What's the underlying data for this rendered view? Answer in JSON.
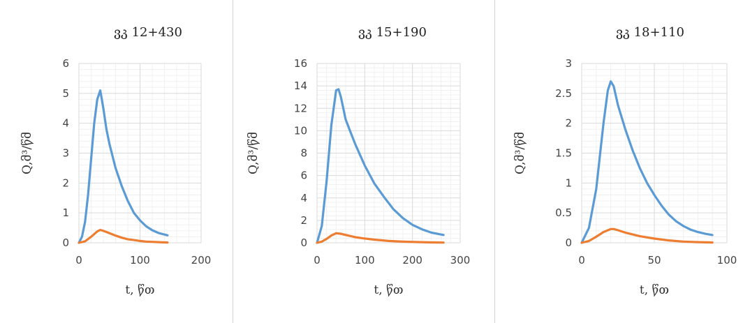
{
  "colors": {
    "series_q": "#5b9bd5",
    "series_orange": "#ed7d31",
    "major_grid": "#d9d9d9",
    "minor_grid": "#f0f0f0"
  },
  "chart_data": [
    {
      "type": "line",
      "title": "ვკ 12+430",
      "xlabel": "t, წთ",
      "ylabel": "Q,მ³/წმ",
      "xlim": [
        0,
        200
      ],
      "ylim": [
        0,
        6
      ],
      "xticks": [
        0,
        100,
        200
      ],
      "yticks": [
        0,
        1,
        2,
        3,
        4,
        5,
        6
      ],
      "grid": true,
      "series": [
        {
          "x": [
            0,
            5,
            10,
            15,
            20,
            25,
            30,
            35,
            40,
            45,
            50,
            60,
            70,
            80,
            90,
            100,
            110,
            120,
            130,
            145
          ],
          "y": [
            0,
            0.2,
            0.7,
            1.6,
            2.8,
            4.0,
            4.8,
            5.1,
            4.5,
            3.8,
            3.3,
            2.5,
            1.9,
            1.4,
            1.0,
            0.75,
            0.55,
            0.42,
            0.33,
            0.25
          ]
        },
        {
          "x": [
            0,
            10,
            20,
            30,
            35,
            40,
            50,
            60,
            70,
            80,
            90,
            100,
            110,
            120,
            130,
            145
          ],
          "y": [
            0,
            0.05,
            0.2,
            0.38,
            0.43,
            0.4,
            0.32,
            0.24,
            0.17,
            0.12,
            0.09,
            0.06,
            0.04,
            0.03,
            0.02,
            0.01
          ]
        }
      ]
    },
    {
      "type": "line",
      "title": "ვკ 15+190",
      "xlabel": "t, წთ",
      "ylabel": "Q,მ³/წმ",
      "xlim": [
        0,
        300
      ],
      "ylim": [
        0,
        16
      ],
      "xticks": [
        0,
        100,
        200,
        300
      ],
      "yticks": [
        0,
        2,
        4,
        6,
        8,
        10,
        12,
        14,
        16
      ],
      "grid": true,
      "series": [
        {
          "x": [
            0,
            10,
            20,
            30,
            40,
            45,
            50,
            60,
            70,
            80,
            100,
            120,
            140,
            160,
            180,
            200,
            220,
            240,
            265
          ],
          "y": [
            0,
            1.5,
            5.5,
            10.5,
            13.6,
            13.7,
            13.0,
            11.0,
            9.9,
            8.8,
            6.9,
            5.3,
            4.1,
            3.0,
            2.2,
            1.6,
            1.2,
            0.9,
            0.7
          ]
        },
        {
          "x": [
            0,
            10,
            20,
            30,
            40,
            50,
            60,
            80,
            100,
            120,
            150,
            180,
            210,
            240,
            265
          ],
          "y": [
            0,
            0.1,
            0.35,
            0.65,
            0.85,
            0.8,
            0.7,
            0.5,
            0.38,
            0.28,
            0.16,
            0.1,
            0.06,
            0.03,
            0.02
          ]
        }
      ]
    },
    {
      "type": "line",
      "title": "ვკ 18+110",
      "xlabel": "t, წთ",
      "ylabel": "Q,მ³/წმ",
      "xlim": [
        0,
        100
      ],
      "ylim": [
        0,
        3
      ],
      "xticks": [
        0,
        50,
        100
      ],
      "yticks": [
        0,
        0.5,
        1,
        1.5,
        2,
        2.5,
        3
      ],
      "ytick_labels": [
        "0",
        "0.5",
        "1",
        "1.5",
        "2",
        "2.5",
        "3"
      ],
      "grid": true,
      "series": [
        {
          "x": [
            0,
            5,
            10,
            15,
            18,
            20,
            22,
            25,
            30,
            35,
            40,
            45,
            50,
            55,
            60,
            65,
            70,
            75,
            80,
            85,
            90
          ],
          "y": [
            0,
            0.25,
            0.9,
            2.0,
            2.55,
            2.7,
            2.62,
            2.3,
            1.9,
            1.55,
            1.25,
            1.0,
            0.8,
            0.62,
            0.47,
            0.36,
            0.28,
            0.22,
            0.18,
            0.15,
            0.13
          ]
        },
        {
          "x": [
            0,
            5,
            10,
            15,
            20,
            22,
            25,
            30,
            40,
            50,
            60,
            70,
            80,
            90
          ],
          "y": [
            0,
            0.03,
            0.1,
            0.18,
            0.23,
            0.23,
            0.21,
            0.17,
            0.11,
            0.07,
            0.04,
            0.02,
            0.01,
            0.005
          ]
        }
      ]
    }
  ]
}
